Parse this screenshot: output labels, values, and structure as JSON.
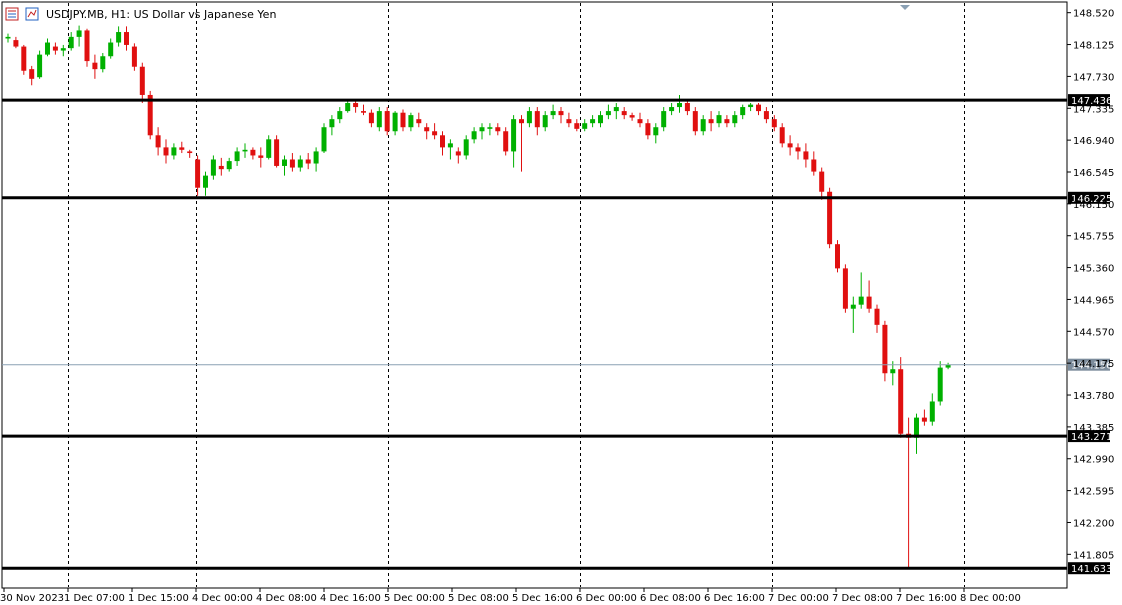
{
  "header": {
    "symbol_title": "USDJPY.MB, H1:  US Dollar vs Japanese Yen"
  },
  "icons": [
    "window-menu-icon",
    "indicator-list-icon"
  ],
  "colors": {
    "bull": "#00b000",
    "bear": "#e01010",
    "grid": "#000000",
    "level_line": "#000000",
    "bid_line": "#8aa0b4",
    "bid_label": "#7c8c9c",
    "level_label": "#000000"
  },
  "chart_data": {
    "type": "candlestick",
    "timeframe": "H1",
    "title": "USDJPY.MB, H1:  US Dollar vs Japanese Yen",
    "ylim": [
      141.4,
      148.64
    ],
    "y_tick_labels": [
      "148.520",
      "148.125",
      "147.730",
      "147.335",
      "146.940",
      "146.545",
      "146.150",
      "145.755",
      "145.360",
      "144.965",
      "144.570",
      "144.175",
      "143.780",
      "143.385",
      "142.990",
      "142.595",
      "142.200",
      "141.805"
    ],
    "x_tick_labels": [
      "30 Nov 2023",
      "1 Dec 07:00",
      "1 Dec 15:00",
      "4 Dec 00:00",
      "4 Dec 08:00",
      "4 Dec 16:00",
      "5 Dec 00:00",
      "5 Dec 08:00",
      "5 Dec 16:00",
      "6 Dec 00:00",
      "6 Dec 08:00",
      "6 Dec 16:00",
      "7 Dec 00:00",
      "7 Dec 08:00",
      "7 Dec 16:00",
      "8 Dec 00:00"
    ],
    "day_separator_labels": [
      "1 Dec 07:00",
      "4 Dec 00:00",
      "5 Dec 00:00",
      "6 Dec 00:00",
      "7 Dec 00:00",
      "8 Dec 00:00"
    ],
    "horizontal_levels": [
      {
        "value": 147.436,
        "label": "147.436"
      },
      {
        "value": 146.225,
        "label": "146.225"
      },
      {
        "value": 143.271,
        "label": "143.271"
      },
      {
        "value": 141.633,
        "label": "141.633"
      }
    ],
    "current_bid": {
      "value": 144.156,
      "label": "144.156"
    },
    "candles": [
      [
        148.2,
        148.26,
        148.15,
        148.22
      ],
      [
        148.18,
        148.22,
        148.08,
        148.1
      ],
      [
        148.1,
        148.12,
        147.75,
        147.8
      ],
      [
        147.82,
        147.86,
        147.62,
        147.7
      ],
      [
        147.72,
        148.05,
        147.7,
        148.0
      ],
      [
        148.0,
        148.2,
        147.98,
        148.15
      ],
      [
        148.1,
        148.15,
        148.0,
        148.05
      ],
      [
        148.05,
        148.12,
        147.98,
        148.08
      ],
      [
        148.08,
        148.28,
        148.05,
        148.22
      ],
      [
        148.22,
        148.36,
        148.1,
        148.3
      ],
      [
        148.3,
        148.32,
        147.85,
        147.92
      ],
      [
        147.9,
        148.0,
        147.7,
        147.82
      ],
      [
        147.82,
        148.02,
        147.78,
        147.98
      ],
      [
        147.98,
        148.2,
        147.95,
        148.15
      ],
      [
        148.15,
        148.35,
        148.1,
        148.28
      ],
      [
        148.28,
        148.35,
        148.05,
        148.12
      ],
      [
        148.1,
        148.14,
        147.8,
        147.85
      ],
      [
        147.85,
        147.9,
        147.4,
        147.5
      ],
      [
        147.5,
        147.55,
        146.95,
        147.0
      ],
      [
        147.0,
        147.1,
        146.75,
        146.85
      ],
      [
        146.85,
        146.95,
        146.65,
        146.75
      ],
      [
        146.75,
        146.9,
        146.7,
        146.85
      ],
      [
        146.85,
        146.92,
        146.78,
        146.82
      ],
      [
        146.8,
        146.82,
        146.72,
        146.78
      ],
      [
        146.7,
        146.75,
        146.25,
        146.35
      ],
      [
        146.35,
        146.55,
        146.25,
        146.5
      ],
      [
        146.5,
        146.75,
        146.45,
        146.7
      ],
      [
        146.62,
        146.72,
        146.5,
        146.58
      ],
      [
        146.58,
        146.72,
        146.55,
        146.68
      ],
      [
        146.68,
        146.85,
        146.62,
        146.8
      ],
      [
        146.8,
        146.9,
        146.72,
        146.82
      ],
      [
        146.82,
        146.85,
        146.7,
        146.75
      ],
      [
        146.75,
        146.85,
        146.6,
        146.72
      ],
      [
        146.72,
        147.0,
        146.7,
        146.95
      ],
      [
        146.95,
        147.0,
        146.6,
        146.62
      ],
      [
        146.62,
        146.75,
        146.5,
        146.7
      ],
      [
        146.7,
        146.78,
        146.55,
        146.6
      ],
      [
        146.6,
        146.75,
        146.55,
        146.7
      ],
      [
        146.7,
        146.78,
        146.58,
        146.65
      ],
      [
        146.65,
        146.85,
        146.55,
        146.8
      ],
      [
        146.8,
        147.15,
        146.78,
        147.1
      ],
      [
        147.1,
        147.25,
        147.0,
        147.2
      ],
      [
        147.2,
        147.35,
        147.15,
        147.3
      ],
      [
        147.3,
        147.45,
        147.28,
        147.4
      ],
      [
        147.4,
        147.45,
        147.28,
        147.35
      ],
      [
        147.3,
        147.38,
        147.25,
        147.28
      ],
      [
        147.28,
        147.32,
        147.1,
        147.15
      ],
      [
        147.1,
        147.35,
        147.05,
        147.3
      ],
      [
        147.3,
        147.35,
        147.0,
        147.05
      ],
      [
        147.05,
        147.3,
        147.0,
        147.28
      ],
      [
        147.28,
        147.32,
        147.05,
        147.1
      ],
      [
        147.1,
        147.28,
        147.05,
        147.25
      ],
      [
        147.2,
        147.28,
        147.1,
        147.15
      ],
      [
        147.1,
        147.15,
        146.95,
        147.05
      ],
      [
        147.05,
        147.15,
        146.95,
        147.0
      ],
      [
        147.0,
        147.05,
        146.75,
        146.85
      ],
      [
        146.85,
        146.95,
        146.7,
        146.9
      ],
      [
        146.8,
        146.85,
        146.65,
        146.75
      ],
      [
        146.75,
        147.0,
        146.7,
        146.95
      ],
      [
        146.95,
        147.1,
        146.9,
        147.05
      ],
      [
        147.05,
        147.15,
        146.95,
        147.1
      ],
      [
        147.08,
        147.15,
        147.0,
        147.1
      ],
      [
        147.1,
        147.15,
        147.0,
        147.05
      ],
      [
        147.05,
        147.1,
        146.75,
        146.8
      ],
      [
        146.8,
        147.25,
        146.6,
        147.2
      ],
      [
        147.2,
        147.25,
        146.55,
        147.15
      ],
      [
        147.15,
        147.35,
        147.1,
        147.3
      ],
      [
        147.3,
        147.35,
        147.0,
        147.1
      ],
      [
        147.1,
        147.3,
        147.05,
        147.25
      ],
      [
        147.25,
        147.38,
        147.2,
        147.3
      ],
      [
        147.3,
        147.35,
        147.15,
        147.25
      ],
      [
        147.2,
        147.28,
        147.1,
        147.15
      ],
      [
        147.15,
        147.2,
        147.05,
        147.08
      ],
      [
        147.08,
        147.2,
        147.05,
        147.15
      ],
      [
        147.15,
        147.25,
        147.1,
        147.2
      ],
      [
        147.15,
        147.3,
        147.1,
        147.25
      ],
      [
        147.25,
        147.38,
        147.2,
        147.3
      ],
      [
        147.3,
        147.4,
        147.2,
        147.35
      ],
      [
        147.3,
        147.35,
        147.2,
        147.25
      ],
      [
        147.25,
        147.28,
        147.18,
        147.22
      ],
      [
        147.2,
        147.28,
        147.1,
        147.15
      ],
      [
        147.15,
        147.2,
        146.95,
        147.0
      ],
      [
        147.0,
        147.15,
        146.9,
        147.1
      ],
      [
        147.1,
        147.35,
        147.05,
        147.3
      ],
      [
        147.3,
        147.4,
        147.25,
        147.35
      ],
      [
        147.35,
        147.5,
        147.28,
        147.4
      ],
      [
        147.4,
        147.45,
        147.25,
        147.3
      ],
      [
        147.3,
        147.35,
        147.0,
        147.05
      ],
      [
        147.05,
        147.25,
        147.0,
        147.2
      ],
      [
        147.2,
        147.3,
        147.05,
        147.15
      ],
      [
        147.15,
        147.3,
        147.1,
        147.25
      ],
      [
        147.2,
        147.25,
        147.1,
        147.15
      ],
      [
        147.15,
        147.3,
        147.1,
        147.25
      ],
      [
        147.25,
        147.38,
        147.2,
        147.35
      ],
      [
        147.35,
        147.4,
        147.3,
        147.38
      ],
      [
        147.38,
        147.4,
        147.25,
        147.3
      ],
      [
        147.3,
        147.35,
        147.15,
        147.2
      ],
      [
        147.2,
        147.25,
        147.05,
        147.1
      ],
      [
        147.1,
        147.15,
        146.85,
        146.9
      ],
      [
        146.9,
        147.0,
        146.75,
        146.85
      ],
      [
        146.85,
        146.9,
        146.7,
        146.8
      ],
      [
        146.8,
        146.9,
        146.6,
        146.7
      ],
      [
        146.7,
        146.8,
        146.5,
        146.55
      ],
      [
        146.55,
        146.6,
        146.2,
        146.3
      ],
      [
        146.3,
        146.35,
        145.6,
        145.65
      ],
      [
        145.65,
        145.7,
        145.3,
        145.35
      ],
      [
        145.35,
        145.4,
        144.8,
        144.85
      ],
      [
        144.85,
        145.0,
        144.55,
        144.9
      ],
      [
        144.9,
        145.3,
        144.85,
        145.0
      ],
      [
        145.0,
        145.2,
        144.8,
        144.85
      ],
      [
        144.85,
        144.9,
        144.55,
        144.65
      ],
      [
        144.65,
        144.7,
        143.95,
        144.05
      ],
      [
        144.05,
        144.2,
        143.9,
        144.1
      ],
      [
        144.1,
        144.25,
        143.25,
        143.3
      ],
      [
        143.3,
        143.5,
        141.63,
        143.25
      ],
      [
        143.25,
        143.55,
        143.05,
        143.5
      ],
      [
        143.5,
        143.6,
        143.4,
        143.45
      ],
      [
        143.45,
        143.8,
        143.4,
        143.7
      ],
      [
        143.7,
        144.2,
        143.65,
        144.12
      ],
      [
        144.12,
        144.18,
        144.1,
        144.156
      ]
    ]
  }
}
